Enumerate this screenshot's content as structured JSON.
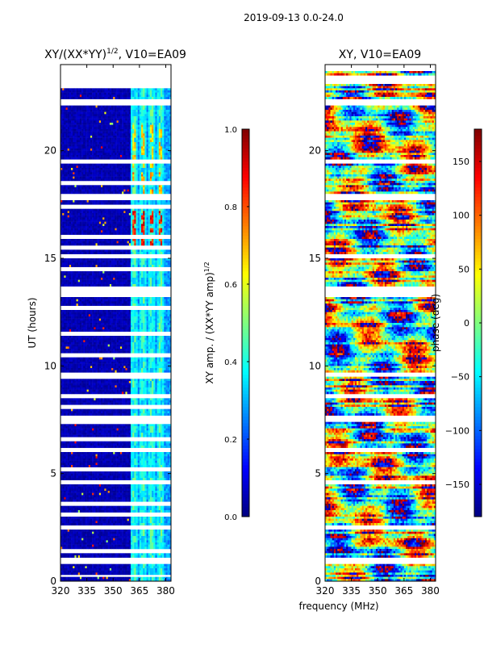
{
  "figure_title": "2019-09-13 0.0-24.0",
  "chart_data": [
    {
      "type": "heatmap",
      "title": "XY/(XX*YY)",
      "title_exponent": "1/2",
      "title_suffix": ", V10=EA09",
      "xlabel": "",
      "ylabel": "UT (hours)",
      "xlim": [
        320,
        383
      ],
      "ylim": [
        0,
        24
      ],
      "xticks": [
        "320",
        "335",
        "350",
        "365",
        "380"
      ],
      "xtick_values": [
        320,
        335,
        350,
        365,
        380
      ],
      "yticks": [
        "0",
        "5",
        "10",
        "15",
        "20"
      ],
      "ytick_values": [
        0,
        5,
        10,
        15,
        20
      ],
      "colorbar": {
        "label": "XY amp. / (XX*YY amp)",
        "label_exponent": "1/2",
        "range": [
          0.0,
          1.0
        ],
        "ticks": [
          "0.0",
          "0.2",
          "0.4",
          "0.6",
          "0.8",
          "1.0"
        ],
        "tick_values": [
          0.0,
          0.2,
          0.4,
          0.6,
          0.8,
          1.0
        ]
      },
      "background_value": 0.02,
      "bright_channels_mhz": [
        362,
        367,
        372,
        377
      ],
      "bright_value_typical": 0.45,
      "peak_regions": [
        {
          "ut_range": [
            15.6,
            17.2
          ],
          "value": 0.9
        },
        {
          "ut_range": [
            19.2,
            21.2
          ],
          "value": 0.7
        },
        {
          "ut_range": [
            18.0,
            19.0
          ],
          "value": 0.75
        }
      ],
      "flagged_ut": [
        0.25,
        0.9,
        1.05,
        1.4,
        2.5,
        3.1,
        3.6,
        4.6,
        5.2,
        6.05,
        6.15,
        6.6,
        7.4,
        7.5,
        7.6,
        8.1,
        8.6,
        9.5,
        9.6,
        10.5,
        11.5,
        12.7,
        13.3,
        13.5,
        13.65,
        14.5,
        15.1,
        15.5,
        16.0,
        17.4,
        17.8,
        17.9,
        18.5,
        19.5,
        22.2,
        22.3,
        23.0,
        23.2,
        23.4,
        23.6,
        23.8,
        24.0
      ]
    },
    {
      "type": "heatmap",
      "title": "XY, V10=EA09",
      "xlabel": "frequency (MHz)",
      "ylabel": "",
      "xlim": [
        320,
        383
      ],
      "ylim": [
        0,
        24
      ],
      "xticks": [
        "320",
        "335",
        "350",
        "365",
        "380"
      ],
      "xtick_values": [
        320,
        335,
        350,
        365,
        380
      ],
      "yticks": [
        "0",
        "5",
        "10",
        "15",
        "20"
      ],
      "ytick_values": [
        0,
        5,
        10,
        15,
        20
      ],
      "colorbar": {
        "label": "phase (deg)",
        "range": [
          -180,
          180
        ],
        "ticks": [
          "−150",
          "−100",
          "−50",
          "0",
          "50",
          "100",
          "150"
        ],
        "tick_values": [
          -150,
          -100,
          -50,
          0,
          50,
          100,
          150
        ]
      },
      "flagged_ut": [
        0.9,
        1.05,
        2.5,
        4.6,
        6.05,
        6.15,
        7.5,
        7.6,
        8.6,
        9.6,
        13.3,
        13.5,
        13.65,
        15.1,
        17.8,
        17.9,
        19.5,
        22.2,
        22.3,
        23.2,
        23.4,
        23.8,
        24.0
      ]
    }
  ]
}
